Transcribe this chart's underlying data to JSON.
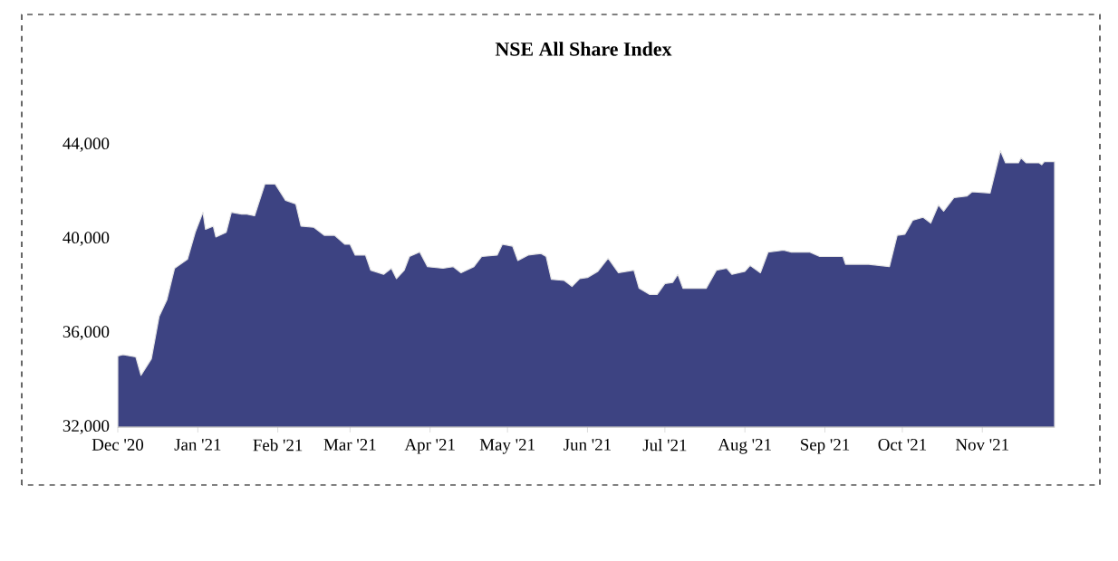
{
  "chart_data": {
    "type": "area",
    "title": "NSE All Share Index",
    "color": "#3d4382",
    "x": [
      "2020-12-01",
      "2020-12-03",
      "2020-12-08",
      "2020-12-10",
      "2020-12-14",
      "2020-12-17",
      "2020-12-20",
      "2020-12-23",
      "2020-12-28",
      "2020-12-31",
      "2021-01-03",
      "2021-01-04",
      "2021-01-07",
      "2021-01-08",
      "2021-01-12",
      "2021-01-14",
      "2021-01-18",
      "2021-01-20",
      "2021-01-23",
      "2021-01-27",
      "2021-01-31",
      "2021-02-04",
      "2021-02-08",
      "2021-02-10",
      "2021-02-15",
      "2021-02-19",
      "2021-02-23",
      "2021-02-27",
      "2021-03-01",
      "2021-03-03",
      "2021-03-07",
      "2021-03-09",
      "2021-03-14",
      "2021-03-17",
      "2021-03-19",
      "2021-03-22",
      "2021-03-24",
      "2021-03-28",
      "2021-03-31",
      "2021-04-06",
      "2021-04-10",
      "2021-04-13",
      "2021-04-18",
      "2021-04-21",
      "2021-04-27",
      "2021-04-29",
      "2021-05-03",
      "2021-05-05",
      "2021-05-09",
      "2021-05-14",
      "2021-05-16",
      "2021-05-18",
      "2021-05-23",
      "2021-05-26",
      "2021-05-29",
      "2021-06-01",
      "2021-06-05",
      "2021-06-09",
      "2021-06-13",
      "2021-06-19",
      "2021-06-21",
      "2021-06-25",
      "2021-06-28",
      "2021-07-01",
      "2021-07-04",
      "2021-07-06",
      "2021-07-08",
      "2021-07-17",
      "2021-07-21",
      "2021-07-25",
      "2021-07-27",
      "2021-08-01",
      "2021-08-03",
      "2021-08-07",
      "2021-08-10",
      "2021-08-16",
      "2021-08-19",
      "2021-08-26",
      "2021-08-30",
      "2021-09-08",
      "2021-09-09",
      "2021-09-18",
      "2021-09-26",
      "2021-09-29",
      "2021-10-02",
      "2021-10-05",
      "2021-10-09",
      "2021-10-12",
      "2021-10-15",
      "2021-10-17",
      "2021-10-21",
      "2021-10-26",
      "2021-10-28",
      "2021-11-04",
      "2021-11-08",
      "2021-11-10",
      "2021-11-15",
      "2021-11-16",
      "2021-11-18",
      "2021-11-23",
      "2021-11-24",
      "2021-11-25",
      "2021-11-29"
    ],
    "values": [
      35020,
      35080,
      34980,
      34200,
      34900,
      36700,
      37400,
      38750,
      39130,
      40280,
      41130,
      40410,
      40540,
      40080,
      40280,
      41130,
      41050,
      41050,
      40980,
      42330,
      42330,
      41640,
      41480,
      40540,
      40490,
      40150,
      40150,
      39770,
      39770,
      39310,
      39310,
      38670,
      38490,
      38750,
      38310,
      38670,
      39250,
      39440,
      38820,
      38750,
      38820,
      38560,
      38820,
      39250,
      39310,
      39770,
      39690,
      39080,
      39310,
      39380,
      39250,
      38280,
      38230,
      37980,
      38310,
      38360,
      38620,
      39180,
      38560,
      38670,
      37900,
      37640,
      37640,
      38100,
      38150,
      38490,
      37900,
      37900,
      38670,
      38750,
      38490,
      38620,
      38870,
      38560,
      39440,
      39520,
      39440,
      39440,
      39250,
      39250,
      38920,
      38920,
      38820,
      40150,
      40200,
      40790,
      40920,
      40670,
      41440,
      41180,
      41750,
      41820,
      42000,
      41950,
      43750,
      43230,
      43230,
      43440,
      43230,
      43230,
      43150,
      43280,
      43280
    ],
    "xlim": [
      "2020-12-01",
      "2021-11-29"
    ],
    "xticks": [
      {
        "value": "2020-12-01",
        "label": "Dec '20"
      },
      {
        "value": "2021-01-01",
        "label": "Jan '21"
      },
      {
        "value": "2021-02-01",
        "label": "Feb '21"
      },
      {
        "value": "2021-03-01",
        "label": "Mar '21"
      },
      {
        "value": "2021-04-01",
        "label": "Apr '21"
      },
      {
        "value": "2021-05-01",
        "label": "May '21"
      },
      {
        "value": "2021-06-01",
        "label": "Jun '21"
      },
      {
        "value": "2021-07-01",
        "label": "Jul '21"
      },
      {
        "value": "2021-08-01",
        "label": "Aug '21"
      },
      {
        "value": "2021-09-01",
        "label": "Sep '21"
      },
      {
        "value": "2021-10-01",
        "label": "Oct '21"
      },
      {
        "value": "2021-11-01",
        "label": "Nov '21"
      }
    ],
    "ylim": [
      32000,
      44000
    ],
    "yticks": [
      {
        "value": 32000,
        "label": "32,000"
      },
      {
        "value": 36000,
        "label": "36,000"
      },
      {
        "value": 40000,
        "label": "40,000"
      },
      {
        "value": 44000,
        "label": "44,000"
      }
    ]
  }
}
